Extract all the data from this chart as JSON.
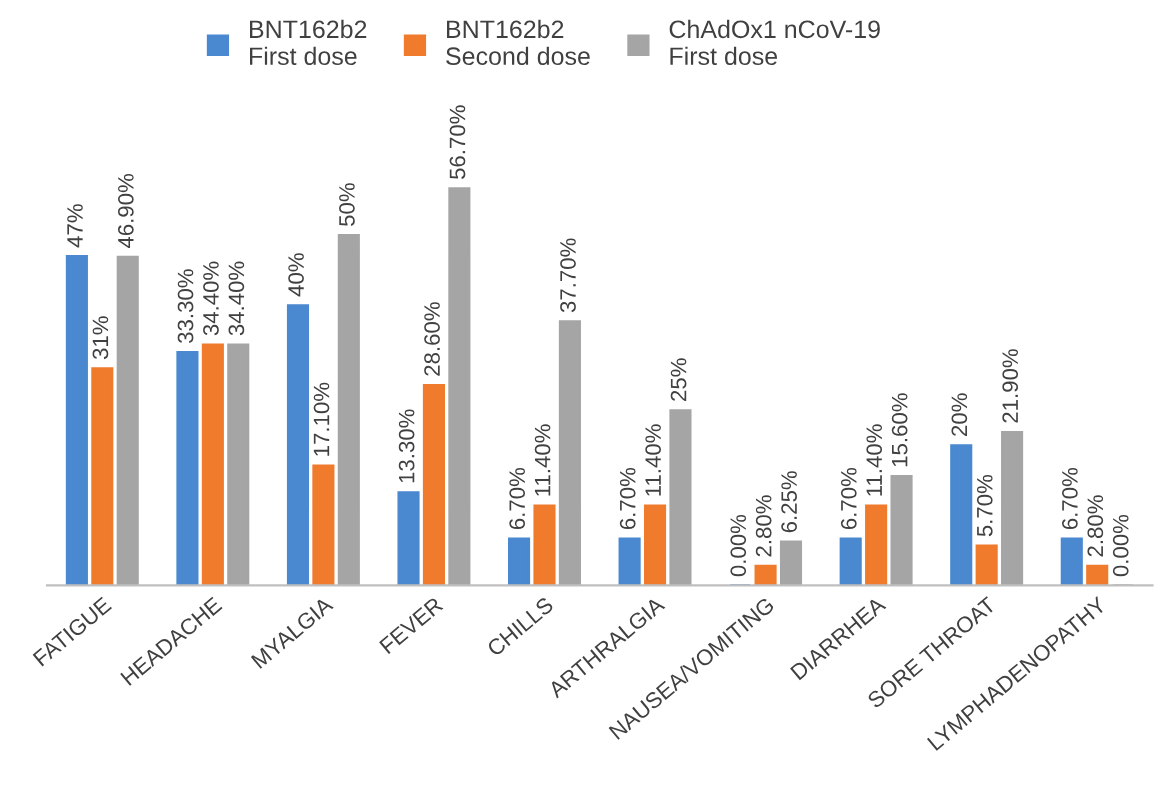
{
  "chart_data": {
    "type": "bar",
    "categories": [
      "FATIGUE",
      "HEADACHE",
      "MYALGIA",
      "FEVER",
      "CHILLS",
      "ARTHRALGIA",
      "NAUSEA/VOMITING",
      "DIARRHEA",
      "SORE THROAT",
      "LYMPHADENOPATHY"
    ],
    "series": [
      {
        "name": "BNT162b2\nFirst dose",
        "color": "#4a88d0",
        "values": [
          47,
          33.3,
          40,
          13.3,
          6.7,
          6.7,
          0.0,
          6.7,
          20,
          6.7
        ],
        "value_labels": [
          "47%",
          "33.30%",
          "40%",
          "13.30%",
          "6.70%",
          "6.70%",
          "0.00%",
          "6.70%",
          "20%",
          "6.70%"
        ]
      },
      {
        "name": "BNT162b2\nSecond dose",
        "color": "#f07b2c",
        "values": [
          31,
          34.4,
          17.1,
          28.6,
          11.4,
          11.4,
          2.8,
          11.4,
          5.7,
          2.8
        ],
        "value_labels": [
          "31%",
          "34.40%",
          "17.10%",
          "28.60%",
          "11.40%",
          "11.40%",
          "2.80%",
          "11.40%",
          "5.70%",
          "2.80%"
        ]
      },
      {
        "name": "ChAdOx1 nCoV-19\nFirst dose",
        "color": "#a5a5a5",
        "values": [
          46.9,
          34.4,
          50,
          56.7,
          37.7,
          25,
          6.25,
          15.6,
          21.9,
          0.0
        ],
        "value_labels": [
          "46.90%",
          "34.40%",
          "50%",
          "56.70%",
          "37.70%",
          "25%",
          "6.25%",
          "15.60%",
          "21.90%",
          "0.00%"
        ]
      }
    ],
    "legend": "top",
    "grid": false
  }
}
